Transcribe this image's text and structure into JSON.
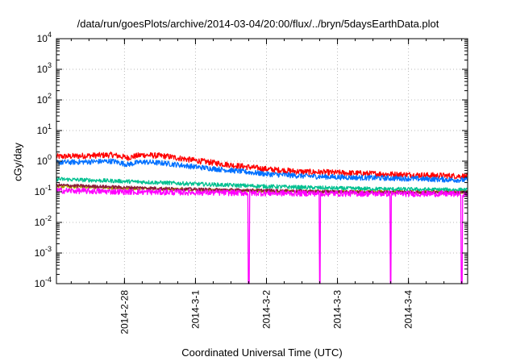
{
  "chart_data": {
    "type": "line",
    "title": "/data/run/goesPlots/archive/2014-03-04/20:00/flux/../bryn/5daysEarthData.plot",
    "xlabel": "Coordinated Universal Time (UTC)",
    "ylabel": "cGy/day",
    "y_scale": "log",
    "ylim": [
      0.0001,
      10000
    ],
    "y_ticks": [
      {
        "value": 0.0001,
        "base": "10",
        "exp": "-4"
      },
      {
        "value": 0.001,
        "base": "10",
        "exp": "-3"
      },
      {
        "value": 0.01,
        "base": "10",
        "exp": "-2"
      },
      {
        "value": 0.1,
        "base": "10",
        "exp": "-1"
      },
      {
        "value": 1,
        "base": "10",
        "exp": "0"
      },
      {
        "value": 10,
        "base": "10",
        "exp": "1"
      },
      {
        "value": 100,
        "base": "10",
        "exp": "2"
      },
      {
        "value": 1000,
        "base": "10",
        "exp": "3"
      },
      {
        "value": 10000,
        "base": "10",
        "exp": "4"
      }
    ],
    "xlim": [
      "2014-02-27 01:00",
      "2014-03-04 20:00"
    ],
    "x_ticks": [
      "2014-2-28",
      "2014-3-1",
      "2014-3-2",
      "2014-3-3",
      "2014-3-4"
    ],
    "x_tick_dates": [
      "2014-02-28",
      "2014-03-01",
      "2014-03-02",
      "2014-03-03",
      "2014-03-04"
    ],
    "grid": true,
    "dropouts": [
      "2014-03-01 18:00",
      "2014-03-02 18:00",
      "2014-03-03 18:00",
      "2014-03-04 18:00"
    ],
    "series": [
      {
        "color": "#ff0000",
        "noise": 0.22,
        "dropout": false,
        "points": [
          [
            "2014-02-27 01:00",
            1.4
          ],
          [
            "2014-02-27 20:00",
            1.6
          ],
          [
            "2014-02-28 01:00",
            1.3
          ],
          [
            "2014-02-28 06:00",
            1.6
          ],
          [
            "2014-02-28 14:00",
            1.45
          ],
          [
            "2014-03-01 00:00",
            1.05
          ],
          [
            "2014-03-01 12:00",
            0.75
          ],
          [
            "2014-03-02 00:00",
            0.55
          ],
          [
            "2014-03-02 12:00",
            0.45
          ],
          [
            "2014-03-03 00:00",
            0.42
          ],
          [
            "2014-03-04 00:00",
            0.36
          ],
          [
            "2014-03-04 20:00",
            0.32
          ]
        ]
      },
      {
        "color": "#0070ff",
        "noise": 0.2,
        "dropout": false,
        "points": [
          [
            "2014-02-27 01:00",
            0.9
          ],
          [
            "2014-02-27 20:00",
            1.0
          ],
          [
            "2014-02-28 01:00",
            0.78
          ],
          [
            "2014-02-28 06:00",
            0.95
          ],
          [
            "2014-02-28 14:00",
            0.85
          ],
          [
            "2014-03-01 00:00",
            0.65
          ],
          [
            "2014-03-01 12:00",
            0.5
          ],
          [
            "2014-03-02 00:00",
            0.38
          ],
          [
            "2014-03-02 12:00",
            0.33
          ],
          [
            "2014-03-03 00:00",
            0.3
          ],
          [
            "2014-03-04 00:00",
            0.27
          ],
          [
            "2014-03-04 20:00",
            0.24
          ]
        ]
      },
      {
        "color": "#00c090",
        "noise": 0.15,
        "dropout": false,
        "points": [
          [
            "2014-02-27 01:00",
            0.26
          ],
          [
            "2014-02-28 00:00",
            0.22
          ],
          [
            "2014-03-01 00:00",
            0.18
          ],
          [
            "2014-03-02 00:00",
            0.15
          ],
          [
            "2014-03-03 00:00",
            0.13
          ],
          [
            "2014-03-04 00:00",
            0.12
          ],
          [
            "2014-03-04 20:00",
            0.115
          ]
        ]
      },
      {
        "color": "#b0a000",
        "noise": 0.12,
        "dropout": false,
        "points": [
          [
            "2014-02-27 01:00",
            0.15
          ],
          [
            "2014-02-28 00:00",
            0.13
          ],
          [
            "2014-03-01 00:00",
            0.115
          ],
          [
            "2014-03-02 00:00",
            0.105
          ],
          [
            "2014-03-03 00:00",
            0.1
          ],
          [
            "2014-03-04 20:00",
            0.095
          ]
        ]
      },
      {
        "color": "#8b1a3a",
        "noise": 0.12,
        "dropout": false,
        "points": [
          [
            "2014-02-27 01:00",
            0.165
          ],
          [
            "2014-02-28 00:00",
            0.14
          ],
          [
            "2014-03-01 00:00",
            0.12
          ],
          [
            "2014-03-02 00:00",
            0.11
          ],
          [
            "2014-03-03 00:00",
            0.1
          ],
          [
            "2014-03-04 20:00",
            0.095
          ]
        ]
      },
      {
        "color": "#ff00ff",
        "noise": 0.22,
        "dropout": true,
        "points": [
          [
            "2014-02-27 01:00",
            0.11
          ],
          [
            "2014-02-28 00:00",
            0.1
          ],
          [
            "2014-03-01 00:00",
            0.095
          ],
          [
            "2014-03-02 00:00",
            0.09
          ],
          [
            "2014-03-03 00:00",
            0.088
          ],
          [
            "2014-03-04 20:00",
            0.085
          ]
        ]
      }
    ]
  }
}
